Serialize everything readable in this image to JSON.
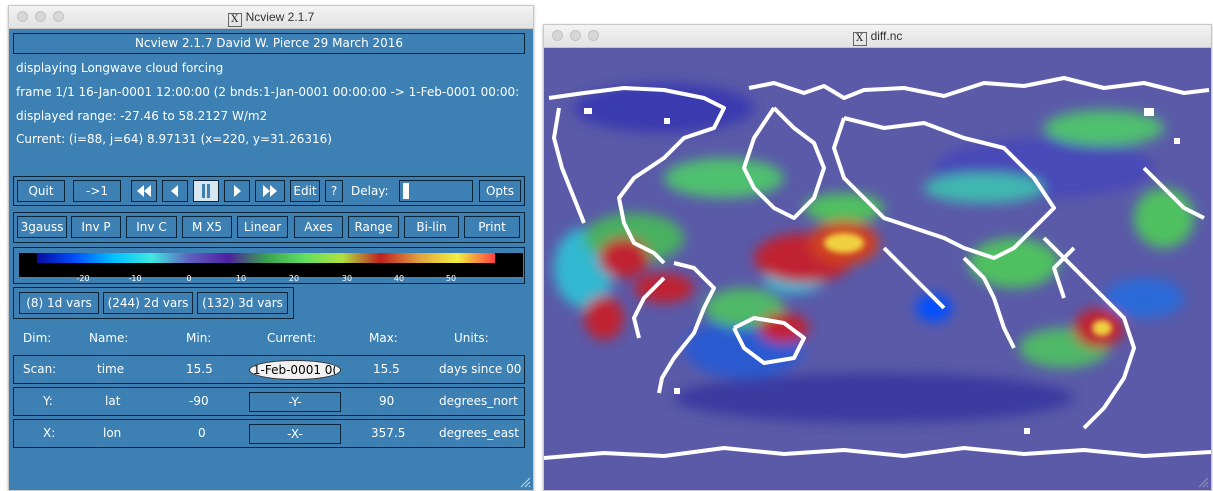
{
  "control_window": {
    "title": "Ncview 2.1.7",
    "banner": "Ncview 2.1.7 David W. Pierce  29 March 2016",
    "info": {
      "displaying": "displaying Longwave cloud forcing",
      "frame": "frame 1/1 16-Jan-0001 12:00:00 (2 bnds:1-Jan-0001 00:00:00 -> 1-Feb-0001 00:00:",
      "range": "displayed range: -27.46 to 58.2127 W/m2",
      "current": "Current: (i=88, j=64) 8.97131 (x=220, y=31.26316)"
    },
    "toolbar": {
      "quit": "Quit",
      "restart": "->1",
      "edit": "Edit",
      "help": "?",
      "delay_label": "Delay:",
      "opts": "Opts"
    },
    "options_row": [
      "3gauss",
      "Inv P",
      "Inv C",
      "M X5",
      "Linear",
      "Axes",
      "Range",
      "Bi-lin",
      "Print"
    ],
    "colorbar": {
      "ticks": [
        "-20",
        "-10",
        "0",
        "10",
        "20",
        "30",
        "40",
        "50"
      ],
      "colors": [
        "#0a0aa0",
        "#0050ff",
        "#00c0ff",
        "#40e8e0",
        "#6060c0",
        "#5020a0",
        "#3aa050",
        "#60e060",
        "#b0e040",
        "#c02020",
        "#e0a040",
        "#f0f040",
        "#ff4040"
      ]
    },
    "var_groups": [
      "(8) 1d vars",
      "(244) 2d vars",
      "(132) 3d vars"
    ],
    "dim_headers": [
      "Dim:",
      "Name:",
      "Min:",
      "Current:",
      "Max:",
      "Units:"
    ],
    "dims": [
      {
        "dim": "Scan:",
        "name": "time",
        "min": "15.5",
        "current": "1-Feb-0001 0(",
        "max": "15.5",
        "units": "days since 00"
      },
      {
        "dim": "Y:",
        "name": "lat",
        "min": "-90",
        "current": "-Y-",
        "max": "90",
        "units": "degrees_nort"
      },
      {
        "dim": "X:",
        "name": "lon",
        "min": "0",
        "current": "-X-",
        "max": "357.5",
        "units": "degrees_east"
      }
    ]
  },
  "map_window": {
    "title": "diff.nc"
  },
  "colors": {
    "panel": "#3d80b3",
    "border": "#0c2438",
    "map_base": "#5a5aa8"
  },
  "icons": {
    "rewind": "double-left-triangle",
    "step_back": "left-triangle",
    "pause": "pause-bars",
    "step_forward": "right-triangle",
    "fast_forward": "double-right-triangle"
  }
}
